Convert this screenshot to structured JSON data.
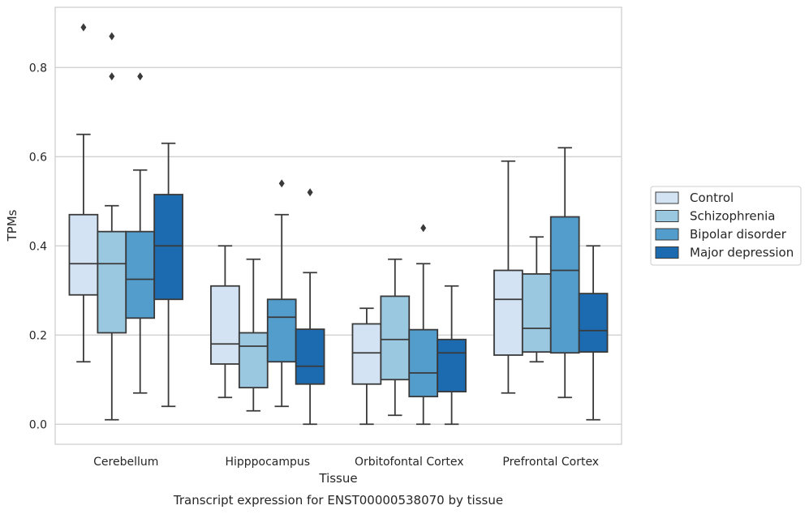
{
  "chart_data": {
    "type": "box",
    "xlabel": "Tissue",
    "ylabel": "TPMs",
    "caption": "Transcript expression for ENST00000538070 by tissue",
    "ylim": [
      -0.045,
      0.935
    ],
    "yticks": [
      "0.0",
      "0.2",
      "0.4",
      "0.6",
      "0.8"
    ],
    "ytick_values": [
      0.0,
      0.2,
      0.4,
      0.6,
      0.8
    ],
    "grid": "horizontal",
    "legend_position": "right",
    "categories": [
      "Cerebellum",
      "Hipppocampus",
      "Orbitofontal Cortex",
      "Prefrontal Cortex"
    ],
    "series": [
      {
        "name": "Control",
        "color": "#d3e3f3",
        "boxes": [
          {
            "whisker_low": 0.14,
            "q1": 0.29,
            "median": 0.36,
            "q3": 0.47,
            "whisker_high": 0.65,
            "outliers": [
              0.89
            ]
          },
          {
            "whisker_low": 0.06,
            "q1": 0.135,
            "median": 0.18,
            "q3": 0.31,
            "whisker_high": 0.4,
            "outliers": []
          },
          {
            "whisker_low": 0.0,
            "q1": 0.09,
            "median": 0.16,
            "q3": 0.225,
            "whisker_high": 0.26,
            "outliers": []
          },
          {
            "whisker_low": 0.07,
            "q1": 0.155,
            "median": 0.28,
            "q3": 0.345,
            "whisker_high": 0.59,
            "outliers": []
          }
        ]
      },
      {
        "name": "Schizophrenia",
        "color": "#9ac8e0",
        "boxes": [
          {
            "whisker_low": 0.01,
            "q1": 0.205,
            "median": 0.36,
            "q3": 0.432,
            "whisker_high": 0.49,
            "outliers": [
              0.87,
              0.78
            ]
          },
          {
            "whisker_low": 0.03,
            "q1": 0.082,
            "median": 0.175,
            "q3": 0.205,
            "whisker_high": 0.37,
            "outliers": []
          },
          {
            "whisker_low": 0.02,
            "q1": 0.1,
            "median": 0.19,
            "q3": 0.287,
            "whisker_high": 0.37,
            "outliers": []
          },
          {
            "whisker_low": 0.14,
            "q1": 0.162,
            "median": 0.215,
            "q3": 0.337,
            "whisker_high": 0.42,
            "outliers": []
          }
        ]
      },
      {
        "name": "Bipolar disorder",
        "color": "#529dcc",
        "boxes": [
          {
            "whisker_low": 0.07,
            "q1": 0.238,
            "median": 0.325,
            "q3": 0.432,
            "whisker_high": 0.57,
            "outliers": [
              0.78
            ]
          },
          {
            "whisker_low": 0.04,
            "q1": 0.14,
            "median": 0.24,
            "q3": 0.28,
            "whisker_high": 0.47,
            "outliers": [
              0.54
            ]
          },
          {
            "whisker_low": 0.0,
            "q1": 0.062,
            "median": 0.115,
            "q3": 0.212,
            "whisker_high": 0.36,
            "outliers": [
              0.44
            ]
          },
          {
            "whisker_low": 0.06,
            "q1": 0.16,
            "median": 0.345,
            "q3": 0.465,
            "whisker_high": 0.62,
            "outliers": []
          }
        ]
      },
      {
        "name": "Major depression",
        "color": "#1c6aaf",
        "boxes": [
          {
            "whisker_low": 0.04,
            "q1": 0.28,
            "median": 0.4,
            "q3": 0.515,
            "whisker_high": 0.63,
            "outliers": []
          },
          {
            "whisker_low": 0.0,
            "q1": 0.09,
            "median": 0.13,
            "q3": 0.213,
            "whisker_high": 0.34,
            "outliers": [
              0.52
            ]
          },
          {
            "whisker_low": 0.0,
            "q1": 0.073,
            "median": 0.16,
            "q3": 0.19,
            "whisker_high": 0.31,
            "outliers": []
          },
          {
            "whisker_low": 0.01,
            "q1": 0.162,
            "median": 0.21,
            "q3": 0.293,
            "whisker_high": 0.4,
            "outliers": []
          }
        ]
      }
    ]
  }
}
